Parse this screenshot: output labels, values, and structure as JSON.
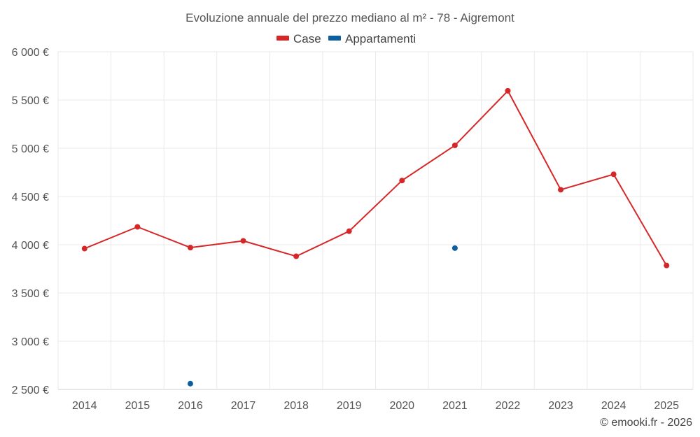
{
  "chart_data": {
    "type": "line",
    "title": "Evoluzione annuale del prezzo mediano al m² - 78 - Aigremont",
    "categories": [
      "2014",
      "2015",
      "2016",
      "2017",
      "2018",
      "2019",
      "2020",
      "2021",
      "2022",
      "2023",
      "2024",
      "2025"
    ],
    "y_tick_labels": [
      "6 000 €",
      "5 500 €",
      "5 000 €",
      "4 500 €",
      "4 000 €",
      "3 500 €",
      "3 000 €",
      "2 500 €"
    ],
    "y_ticks": [
      6000,
      5500,
      5000,
      4500,
      4000,
      3500,
      3000,
      2500
    ],
    "ylim": [
      2500,
      6000
    ],
    "grid": true,
    "legend_position": "top-center",
    "series": [
      {
        "name": "Case",
        "color": "#d62728",
        "connected": true,
        "values": [
          3960,
          4185,
          3970,
          4040,
          3880,
          4140,
          4665,
          5030,
          5595,
          4570,
          4730,
          3785
        ]
      },
      {
        "name": "Appartamenti",
        "color": "#0d5fa0",
        "connected": false,
        "values": [
          null,
          null,
          2560,
          null,
          null,
          null,
          null,
          3965,
          null,
          null,
          null,
          null
        ]
      }
    ]
  },
  "footer": {
    "credit": "© emooki.fr - 2026"
  }
}
